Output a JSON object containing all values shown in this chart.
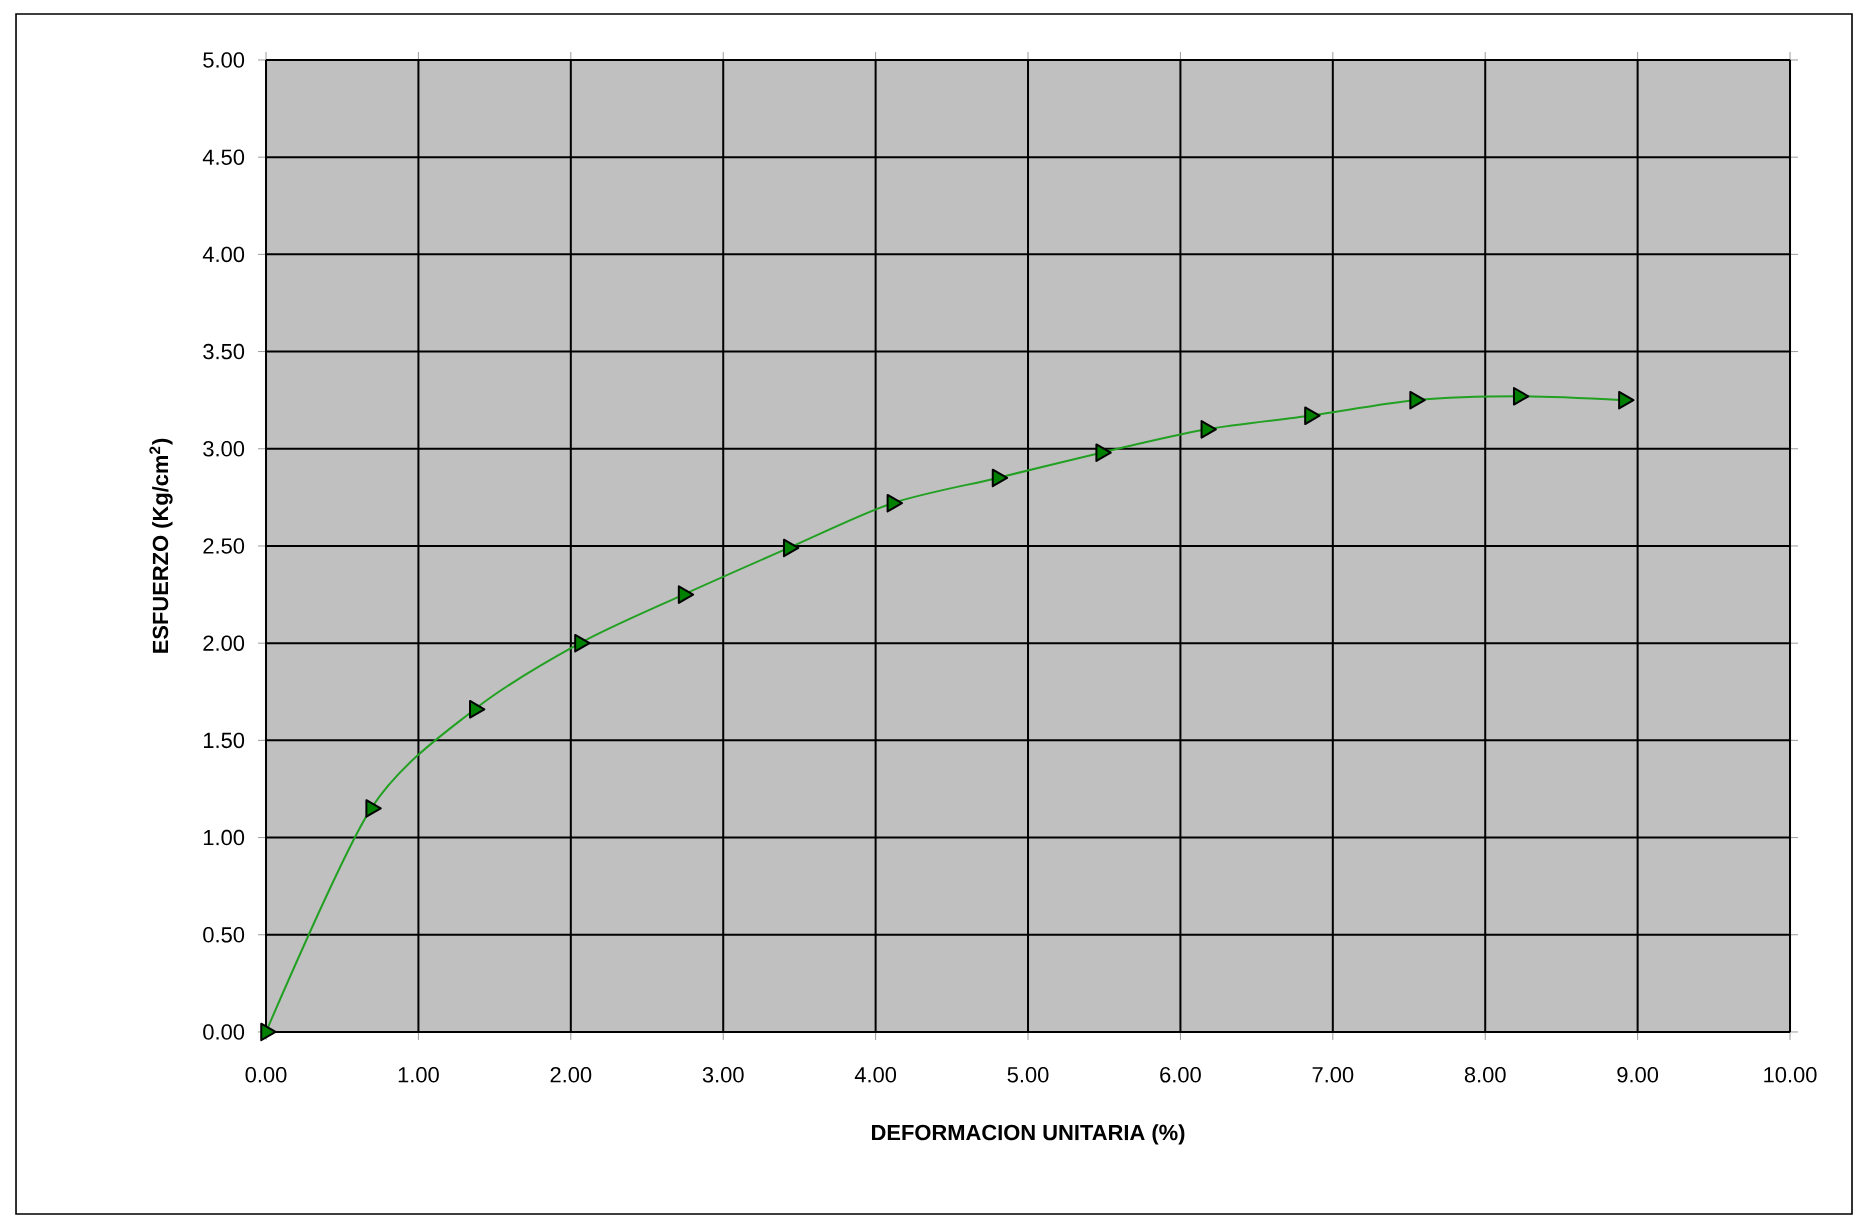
{
  "chart_data": {
    "type": "line",
    "xlabel": "DEFORMACION UNITARIA (%)",
    "ylabel": "ESFUERZO (Kg/cm$^{2}$)",
    "x": [
      0,
      0.69,
      1.37,
      2.06,
      2.74,
      3.43,
      4.11,
      4.8,
      5.48,
      6.17,
      6.85,
      7.54,
      8.22,
      8.91
    ],
    "series": [
      {
        "color": "#22a022",
        "values": [
          0,
          1.15,
          1.66,
          2.0,
          2.25,
          2.49,
          2.72,
          2.85,
          2.98,
          3.1,
          3.17,
          3.25,
          3.27,
          3.25
        ]
      }
    ],
    "xlim": [
      0,
      10
    ],
    "ylim": [
      0,
      5
    ],
    "xticks": [
      {
        "value": 0,
        "label": "0.00"
      },
      {
        "value": 1,
        "label": "1.00"
      },
      {
        "value": 2,
        "label": "2.00"
      },
      {
        "value": 3,
        "label": "3.00"
      },
      {
        "value": 4,
        "label": "4.00"
      },
      {
        "value": 5,
        "label": "5.00"
      },
      {
        "value": 6,
        "label": "6.00"
      },
      {
        "value": 7,
        "label": "7.00"
      },
      {
        "value": 8,
        "label": "8.00"
      },
      {
        "value": 9,
        "label": "9.00"
      },
      {
        "value": 10,
        "label": "10.00"
      }
    ],
    "yticks": [
      {
        "value": 0,
        "label": "0.00"
      },
      {
        "value": 0.5,
        "label": "0.50"
      },
      {
        "value": 1,
        "label": "1.00"
      },
      {
        "value": 1.5,
        "label": "1.50"
      },
      {
        "value": 2,
        "label": "2.00"
      },
      {
        "value": 2.5,
        "label": "2.50"
      },
      {
        "value": 3,
        "label": "3.00"
      },
      {
        "value": 3.5,
        "label": "3.50"
      },
      {
        "value": 4,
        "label": "4.00"
      },
      {
        "value": 4.5,
        "label": "4.50"
      },
      {
        "value": 5,
        "label": "5.00"
      }
    ],
    "grid": true,
    "marker": "triangle",
    "line_style": "solid"
  }
}
